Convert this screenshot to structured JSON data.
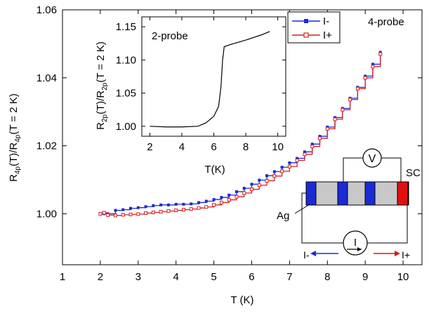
{
  "chart_data": [
    {
      "type": "line",
      "xlabel": "T (K)",
      "ylabel": "R4p(T)/R4p(T = 2 K)",
      "xlim": [
        1,
        10.5
      ],
      "ylim": [
        0.985,
        1.06
      ],
      "xticks": [
        1,
        2,
        3,
        4,
        5,
        6,
        7,
        8,
        9,
        10
      ],
      "yticks": [
        1.0,
        1.02,
        1.04,
        1.06
      ],
      "ytick_labels": [
        "1.00",
        "1.02",
        "1.04",
        "1.06"
      ],
      "legend_position": "top-right",
      "annotation": "4-probe",
      "series": [
        {
          "name": "I-",
          "color": "#1a2bd6",
          "marker": "filled-square",
          "x": [
            2.0,
            2.1,
            2.2,
            2.4,
            2.6,
            2.8,
            3.0,
            3.2,
            3.4,
            3.6,
            3.8,
            4.0,
            4.2,
            4.4,
            4.6,
            4.8,
            5.0,
            5.2,
            5.4,
            5.6,
            5.8,
            6.0,
            6.2,
            6.4,
            6.6,
            6.8,
            7.0,
            7.2,
            7.4,
            7.6,
            7.8,
            8.0,
            8.2,
            8.4,
            8.6,
            8.8,
            9.0,
            9.2,
            9.4
          ],
          "values": [
            1.0,
            1.0,
            1.0,
            1.001,
            1.0012,
            1.0016,
            1.0018,
            1.0021,
            1.0024,
            1.0026,
            1.0026,
            1.0028,
            1.0028,
            1.0029,
            1.0033,
            1.0037,
            1.0042,
            1.0048,
            1.0055,
            1.0065,
            1.0075,
            1.0087,
            1.0099,
            1.0112,
            1.0124,
            1.0137,
            1.015,
            1.0163,
            1.0182,
            1.0205,
            1.0228,
            1.0255,
            1.0283,
            1.031,
            1.034,
            1.0372,
            1.0405,
            1.044,
            1.0475
          ]
        },
        {
          "name": "I+",
          "color": "#d62020",
          "marker": "open-square",
          "x": [
            2.0,
            2.1,
            2.2,
            2.4,
            2.6,
            2.8,
            3.0,
            3.2,
            3.4,
            3.6,
            3.8,
            4.0,
            4.2,
            4.4,
            4.6,
            4.8,
            5.0,
            5.2,
            5.4,
            5.6,
            5.8,
            6.0,
            6.2,
            6.4,
            6.6,
            6.8,
            7.0,
            7.2,
            7.4,
            7.6,
            7.8,
            8.0,
            8.2,
            8.4,
            8.6,
            8.8,
            9.0,
            9.2,
            9.4
          ],
          "values": [
            1.0,
            1.0003,
            0.9996,
            0.9995,
            0.9997,
            0.9998,
            0.9999,
            1.0002,
            1.0004,
            1.0006,
            1.0008,
            1.001,
            1.0012,
            1.0014,
            1.0017,
            1.002,
            1.0026,
            1.0033,
            1.0041,
            1.005,
            1.0061,
            1.0072,
            1.0084,
            1.0097,
            1.0111,
            1.0125,
            1.0139,
            1.0157,
            1.0175,
            1.0198,
            1.0222,
            1.025,
            1.0278,
            1.0306,
            1.0336,
            1.0368,
            1.04,
            1.0433,
            1.047
          ]
        }
      ]
    },
    {
      "type": "line",
      "xlabel": "T(K)",
      "ylabel": "R2p(T)/R2p(T = 2 K)",
      "xlim": [
        1.5,
        10.5
      ],
      "ylim": [
        0.985,
        1.165
      ],
      "xticks": [
        2,
        4,
        6,
        8,
        10
      ],
      "yticks": [
        1.0,
        1.05,
        1.1,
        1.15
      ],
      "ytick_labels": [
        "1.00",
        "1.05",
        "1.10",
        "1.15"
      ],
      "annotation": "2-probe",
      "series": [
        {
          "color": "#000000",
          "x": [
            2.0,
            3.0,
            4.0,
            5.0,
            5.5,
            6.0,
            6.3,
            6.45,
            6.55,
            6.65,
            7.0,
            8.0,
            9.0,
            9.5
          ],
          "values": [
            1.0,
            0.999,
            0.999,
            1.0,
            1.005,
            1.015,
            1.03,
            1.06,
            1.1,
            1.12,
            1.123,
            1.13,
            1.138,
            1.143
          ]
        }
      ]
    }
  ],
  "schematic": {
    "labels": {
      "voltmeter": "V",
      "sc": "SC",
      "ag": "Ag",
      "current_source": "I",
      "i_minus": "I-",
      "i_plus": "I+"
    },
    "colors": {
      "contact": "#1a2bd6",
      "superconductor": "#e01010",
      "silver": "#c8c8c8"
    }
  }
}
